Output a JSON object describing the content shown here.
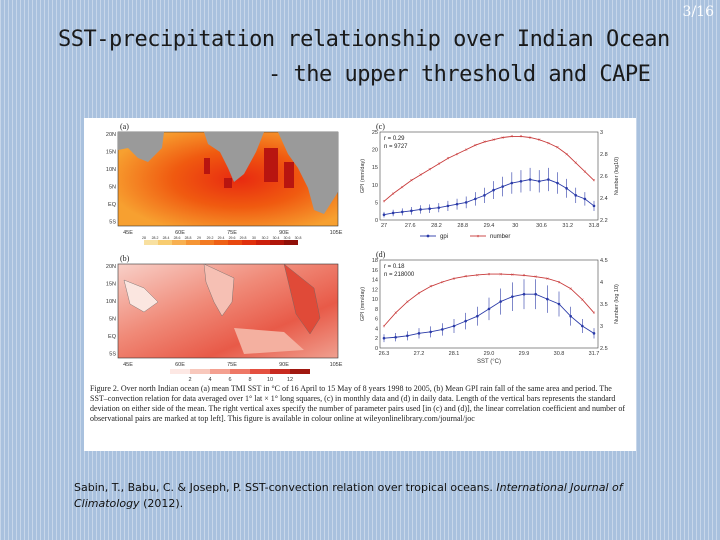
{
  "page_number": "3/16",
  "title_line1": "SST-precipitation relationship over Indian Ocean",
  "title_line2": "- the upper threshold and CAPE",
  "figure": {
    "panel_a_label": "(a)",
    "panel_b_label": "(b)",
    "panel_c_label": "(c)",
    "panel_d_label": "(d)",
    "map_lat_labels": [
      "20N",
      "15N",
      "10N",
      "5N",
      "EQ",
      "5S"
    ],
    "map_lon_labels": [
      "45E",
      "60E",
      "75E",
      "90E",
      "105E"
    ],
    "map_b_lon_labels": [
      "45E",
      "60E",
      "75E",
      "90E",
      "105E"
    ],
    "colorbar_a": [
      "28",
      "28.2",
      "28.4",
      "28.6",
      "28.8",
      "29",
      "29.2",
      "29.4",
      "29.6",
      "29.8",
      "30",
      "30.2",
      "30.4",
      "30.6",
      "30.8"
    ],
    "colorbar_b": [
      "2",
      "4",
      "6",
      "8",
      "10",
      "12"
    ],
    "caption": "Figure 2. Over north Indian ocean (a) mean TMI SST in °C of 16 April to 15 May of 8 years 1998 to 2005, (b) Mean GPI rain fall of the same area and period. The SST–convection relation for data averaged over 1° lat × 1° long squares, (c) in monthly data and (d) in daily data. Length of the vertical bars represents the standard deviation on either side of the mean. The right vertical axes specify the number of parameter pairs used [in (c) and (d)], the linear correlation coefficient and number of observational pairs are marked at top left]. This figure is available in colour online at wileyonlinelibrary.com/journal/joc"
  },
  "chart_data": [
    {
      "type": "line",
      "panel": "(c)",
      "annotations": [
        "r = 0.29",
        "n = 9727"
      ],
      "x": [
        27,
        27.6,
        28.2,
        28.8,
        29.4,
        30,
        30.6,
        31.2,
        31.8
      ],
      "x_ticks": [
        "27",
        "27.6",
        "28.2",
        "28.8",
        "29.4",
        "30",
        "30.6",
        "31.2",
        "31.8"
      ],
      "ylabel": "GPI (mm/day)",
      "ylabel_right": "Number (log10)",
      "ylim": [
        0,
        25
      ],
      "yticks": [
        0,
        5,
        10,
        15,
        20,
        25
      ],
      "ylim_right": [
        2.2,
        3.0
      ],
      "yticks_right": [
        "2.2",
        "2.4",
        "2.6",
        "2.8",
        "3"
      ],
      "legend": [
        "gpi",
        "number"
      ],
      "series": [
        {
          "name": "gpi",
          "color": "#2a3aa8",
          "axis": "left",
          "x": [
            27.0,
            27.2,
            27.4,
            27.6,
            27.8,
            28.0,
            28.2,
            28.4,
            28.6,
            28.8,
            29.0,
            29.2,
            29.4,
            29.6,
            29.8,
            30.0,
            30.2,
            30.4,
            30.6,
            30.8,
            31.0,
            31.2,
            31.4,
            31.6
          ],
          "y": [
            1.5,
            2,
            2.3,
            2.6,
            3,
            3.2,
            3.5,
            4,
            4.5,
            5,
            6,
            7,
            8.5,
            9.5,
            10.5,
            11,
            11.5,
            11,
            11.5,
            10.5,
            9,
            7,
            6,
            4
          ]
        },
        {
          "name": "number",
          "color": "#c83a3a",
          "axis": "right",
          "x": [
            27.0,
            27.2,
            27.4,
            27.6,
            27.8,
            28.0,
            28.2,
            28.4,
            28.6,
            28.8,
            29.0,
            29.2,
            29.4,
            29.6,
            29.8,
            30.0,
            30.2,
            30.4,
            30.6,
            30.8,
            31.0,
            31.2,
            31.4,
            31.6
          ],
          "y": [
            2.37,
            2.44,
            2.5,
            2.56,
            2.61,
            2.66,
            2.71,
            2.76,
            2.8,
            2.84,
            2.88,
            2.91,
            2.93,
            2.95,
            2.96,
            2.96,
            2.95,
            2.93,
            2.9,
            2.86,
            2.8,
            2.72,
            2.64,
            2.56
          ]
        }
      ]
    },
    {
      "type": "line",
      "panel": "(d)",
      "annotations": [
        "r = 0.18",
        "n = 218000"
      ],
      "x_ticks": [
        "26.3",
        "27.2",
        "28.1",
        "29.0",
        "29.9",
        "30.8",
        "31.7"
      ],
      "xlabel": "SST (°C)",
      "ylabel": "GPI (mm/day)",
      "ylabel_right": "Number (log 10)",
      "ylim": [
        0,
        18
      ],
      "yticks": [
        0,
        2,
        4,
        6,
        8,
        10,
        12,
        14,
        16,
        18
      ],
      "ylim_right": [
        2.5,
        4.5
      ],
      "yticks_right": [
        "2.5",
        "3",
        "3.5",
        "4",
        "4.5"
      ],
      "series": [
        {
          "name": "gpi",
          "color": "#2a3aa8",
          "axis": "left",
          "x": [
            26.3,
            26.6,
            26.9,
            27.2,
            27.5,
            27.8,
            28.1,
            28.4,
            28.7,
            29.0,
            29.3,
            29.6,
            29.9,
            30.2,
            30.5,
            30.8,
            31.1,
            31.4,
            31.7
          ],
          "y": [
            2,
            2.2,
            2.5,
            3,
            3.3,
            3.8,
            4.5,
            5.5,
            6.5,
            8,
            9.5,
            10.5,
            11,
            11,
            10,
            9,
            6.5,
            4.5,
            3
          ]
        },
        {
          "name": "number",
          "color": "#c83a3a",
          "axis": "right",
          "x": [
            26.3,
            26.6,
            26.9,
            27.2,
            27.5,
            27.8,
            28.1,
            28.4,
            28.7,
            29.0,
            29.3,
            29.6,
            29.9,
            30.2,
            30.5,
            30.8,
            31.1,
            31.4,
            31.7
          ],
          "y": [
            3.0,
            3.3,
            3.55,
            3.75,
            3.9,
            4.0,
            4.08,
            4.13,
            4.16,
            4.18,
            4.18,
            4.17,
            4.15,
            4.12,
            4.08,
            4.0,
            3.85,
            3.6,
            3.3
          ]
        }
      ]
    }
  ],
  "citation": {
    "authors": "Sabin, T., Babu, C. & Joseph, P.",
    "title": "SST-convection relation over tropical oceans.",
    "journal": "International Journal of Climatology",
    "year": "(2012)."
  }
}
